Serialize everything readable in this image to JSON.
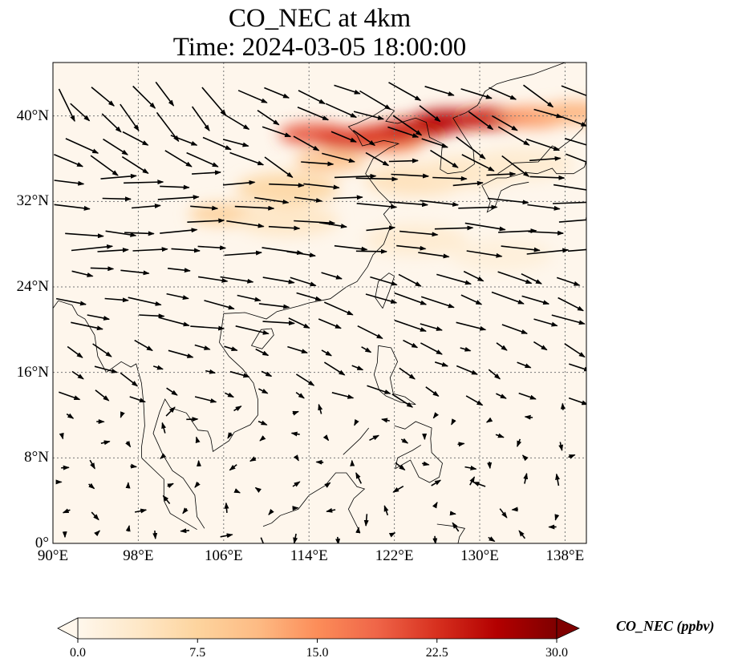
{
  "title": {
    "line1": "CO_NEC at 4km",
    "line2": "Time: 2024-03-05 18:00:00"
  },
  "map": {
    "extent": {
      "lon_min": 90,
      "lon_max": 140,
      "lat_min": 0,
      "lat_max": 45
    },
    "lat_ticks": [
      {
        "value": 0,
        "label": "0°"
      },
      {
        "value": 8,
        "label": "8°N"
      },
      {
        "value": 16,
        "label": "16°N"
      },
      {
        "value": 24,
        "label": "24°N"
      },
      {
        "value": 32,
        "label": "32°N"
      },
      {
        "value": 40,
        "label": "40°N"
      }
    ],
    "lon_ticks": [
      {
        "value": 90,
        "label": "90°E"
      },
      {
        "value": 98,
        "label": "98°E"
      },
      {
        "value": 106,
        "label": "106°E"
      },
      {
        "value": 114,
        "label": "114°E"
      },
      {
        "value": 122,
        "label": "122°E"
      },
      {
        "value": 130,
        "label": "130°E"
      },
      {
        "value": 138,
        "label": "138°E"
      }
    ],
    "gridlines": true,
    "background_color": "#fef6ec",
    "coastline_color": "#000000"
  },
  "colorbar": {
    "label": "CO_NEC (ppbv)",
    "ticks": [
      "0.0",
      "7.5",
      "15.0",
      "22.5",
      "30.0"
    ],
    "min": 0,
    "max": 30,
    "colormap": "OrRd",
    "extend": "both",
    "colors": [
      "#fff7ec",
      "#fee8c8",
      "#fdd49e",
      "#fdbb84",
      "#fc8d59",
      "#ef6548",
      "#d7301f",
      "#b30000",
      "#7f0000"
    ]
  },
  "plumes": [
    {
      "lon": 121.5,
      "lat": 37.5,
      "value": 14
    },
    {
      "lon": 114.5,
      "lat": 38.3,
      "value": 20
    },
    {
      "lon": 118,
      "lat": 37.8,
      "value": 22
    },
    {
      "lon": 121,
      "lat": 38.2,
      "value": 22
    },
    {
      "lon": 124,
      "lat": 38.8,
      "value": 24
    },
    {
      "lon": 127,
      "lat": 39.6,
      "value": 26
    },
    {
      "lon": 131,
      "lat": 39.8,
      "value": 24
    },
    {
      "lon": 135,
      "lat": 39.9,
      "value": 14
    },
    {
      "lon": 139,
      "lat": 40.3,
      "value": 12
    },
    {
      "lon": 116,
      "lat": 35.8,
      "value": 10
    },
    {
      "lon": 112,
      "lat": 33.2,
      "value": 7
    },
    {
      "lon": 106,
      "lat": 30.8,
      "value": 8
    },
    {
      "lon": 112,
      "lat": 30.2,
      "value": 4
    },
    {
      "lon": 124,
      "lat": 34.0,
      "value": 5
    },
    {
      "lon": 129,
      "lat": 34.8,
      "value": 4
    },
    {
      "lon": 134,
      "lat": 35.5,
      "value": 3
    },
    {
      "lon": 124,
      "lat": 28.4,
      "value": 3
    },
    {
      "lon": 132,
      "lat": 27.0,
      "value": 2
    }
  ]
}
